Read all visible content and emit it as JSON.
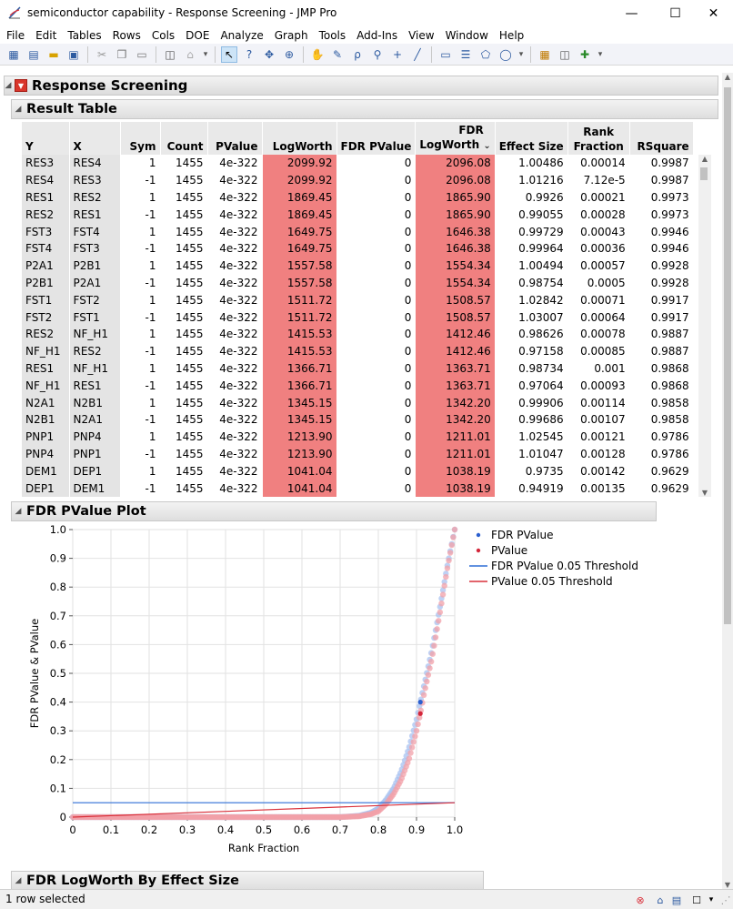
{
  "window": {
    "title": "semiconductor capability - Response Screening - JMP Pro",
    "minimize_glyph": "—",
    "maximize_glyph": "☐",
    "close_glyph": "✕"
  },
  "menu": [
    "File",
    "Edit",
    "Tables",
    "Rows",
    "Cols",
    "DOE",
    "Analyze",
    "Graph",
    "Tools",
    "Add-Ins",
    "View",
    "Window",
    "Help"
  ],
  "toolbar_icons": [
    "new-data-table-icon",
    "new-script-icon",
    "open-icon",
    "save-icon",
    "cut-icon",
    "copy-icon",
    "paste-icon",
    "journal-icon",
    "lock-icon",
    "arrow-icon",
    "help-icon",
    "scroller-icon",
    "crosshair-icon",
    "hand-icon",
    "brush-icon",
    "lasso-icon",
    "magnifier-icon",
    "plus-icon",
    "line-icon",
    "annotate-icon",
    "simple-shape-icon",
    "polygon-icon",
    "ellipse-icon",
    "data-grid-icon",
    "presentation-icon",
    "add-icon"
  ],
  "report": {
    "title": "Response Screening",
    "result_table": {
      "title": "Result Table",
      "columns": [
        {
          "label": "Y",
          "key": "y"
        },
        {
          "label": "X",
          "key": "x"
        },
        {
          "label": "Sym",
          "key": "sym"
        },
        {
          "label": "Count",
          "key": "count"
        },
        {
          "label": "PValue",
          "key": "pvalue"
        },
        {
          "label": "LogWorth",
          "key": "logworth"
        },
        {
          "label": "FDR PValue",
          "key": "fdr_pvalue"
        },
        {
          "label": "FDR LogWorth",
          "key": "fdr_logworth",
          "line1": "FDR",
          "line2": "LogWorth"
        },
        {
          "label": "Effect Size",
          "key": "effect_size"
        },
        {
          "label": "Rank Fraction",
          "key": "rank_fraction",
          "line1": "Rank",
          "line2": "Fraction"
        },
        {
          "label": "RSquare",
          "key": "rsquare"
        }
      ],
      "rows": [
        [
          "RES3",
          "RES4",
          "1",
          "1455",
          "4e-322",
          "2099.92",
          "0",
          "2096.08",
          "1.00486",
          "0.00014",
          "0.9987"
        ],
        [
          "RES4",
          "RES3",
          "-1",
          "1455",
          "4e-322",
          "2099.92",
          "0",
          "2096.08",
          "1.01216",
          "7.12e-5",
          "0.9987"
        ],
        [
          "RES1",
          "RES2",
          "1",
          "1455",
          "4e-322",
          "1869.45",
          "0",
          "1865.90",
          "0.9926",
          "0.00021",
          "0.9973"
        ],
        [
          "RES2",
          "RES1",
          "-1",
          "1455",
          "4e-322",
          "1869.45",
          "0",
          "1865.90",
          "0.99055",
          "0.00028",
          "0.9973"
        ],
        [
          "FST3",
          "FST4",
          "1",
          "1455",
          "4e-322",
          "1649.75",
          "0",
          "1646.38",
          "0.99729",
          "0.00043",
          "0.9946"
        ],
        [
          "FST4",
          "FST3",
          "-1",
          "1455",
          "4e-322",
          "1649.75",
          "0",
          "1646.38",
          "0.99964",
          "0.00036",
          "0.9946"
        ],
        [
          "P2A1",
          "P2B1",
          "1",
          "1455",
          "4e-322",
          "1557.58",
          "0",
          "1554.34",
          "1.00494",
          "0.00057",
          "0.9928"
        ],
        [
          "P2B1",
          "P2A1",
          "-1",
          "1455",
          "4e-322",
          "1557.58",
          "0",
          "1554.34",
          "0.98754",
          "0.0005",
          "0.9928"
        ],
        [
          "FST1",
          "FST2",
          "1",
          "1455",
          "4e-322",
          "1511.72",
          "0",
          "1508.57",
          "1.02842",
          "0.00071",
          "0.9917"
        ],
        [
          "FST2",
          "FST1",
          "-1",
          "1455",
          "4e-322",
          "1511.72",
          "0",
          "1508.57",
          "1.03007",
          "0.00064",
          "0.9917"
        ],
        [
          "RES2",
          "NF_H1",
          "1",
          "1455",
          "4e-322",
          "1415.53",
          "0",
          "1412.46",
          "0.98626",
          "0.00078",
          "0.9887"
        ],
        [
          "NF_H1",
          "RES2",
          "-1",
          "1455",
          "4e-322",
          "1415.53",
          "0",
          "1412.46",
          "0.97158",
          "0.00085",
          "0.9887"
        ],
        [
          "RES1",
          "NF_H1",
          "1",
          "1455",
          "4e-322",
          "1366.71",
          "0",
          "1363.71",
          "0.98734",
          "0.001",
          "0.9868"
        ],
        [
          "NF_H1",
          "RES1",
          "-1",
          "1455",
          "4e-322",
          "1366.71",
          "0",
          "1363.71",
          "0.97064",
          "0.00093",
          "0.9868"
        ],
        [
          "N2A1",
          "N2B1",
          "1",
          "1455",
          "4e-322",
          "1345.15",
          "0",
          "1342.20",
          "0.99906",
          "0.00114",
          "0.9858"
        ],
        [
          "N2B1",
          "N2A1",
          "-1",
          "1455",
          "4e-322",
          "1345.15",
          "0",
          "1342.20",
          "0.99686",
          "0.00107",
          "0.9858"
        ],
        [
          "PNP1",
          "PNP4",
          "1",
          "1455",
          "4e-322",
          "1213.90",
          "0",
          "1211.01",
          "1.02545",
          "0.00121",
          "0.9786"
        ],
        [
          "PNP4",
          "PNP1",
          "-1",
          "1455",
          "4e-322",
          "1213.90",
          "0",
          "1211.01",
          "1.01047",
          "0.00128",
          "0.9786"
        ],
        [
          "DEM1",
          "DEP1",
          "1",
          "1455",
          "4e-322",
          "1041.04",
          "0",
          "1038.19",
          "0.9735",
          "0.00142",
          "0.9629"
        ],
        [
          "DEP1",
          "DEM1",
          "-1",
          "1455",
          "4e-322",
          "1041.04",
          "0",
          "1038.19",
          "0.94919",
          "0.00135",
          "0.9629"
        ]
      ],
      "highlight_color": "#f08080",
      "sort_indicator_glyph": "⌄"
    },
    "fdr_plot": {
      "title": "FDR PValue Plot"
    },
    "next_section": {
      "title": "FDR LogWorth By Effect Size"
    }
  },
  "chart_data": {
    "type": "scatter",
    "title": "",
    "xlabel": "Rank Fraction",
    "ylabel": "FDR PValue & PValue",
    "xlim": [
      0,
      1.0
    ],
    "ylim": [
      0,
      1.0
    ],
    "xticks": [
      "0",
      "0.1",
      "0.2",
      "0.3",
      "0.4",
      "0.5",
      "0.6",
      "0.7",
      "0.8",
      "0.9",
      "1.0"
    ],
    "yticks": [
      "0",
      "0.1",
      "0.2",
      "0.3",
      "0.4",
      "0.5",
      "0.6",
      "0.7",
      "0.8",
      "0.9",
      "1.0"
    ],
    "grid": true,
    "legend_position": "right",
    "series": [
      {
        "name": "FDR PValue",
        "kind": "points",
        "color": "#a8c2f0",
        "x": [
          0.0,
          0.7,
          0.75,
          0.78,
          0.8,
          0.82,
          0.84,
          0.86,
          0.88,
          0.9,
          0.91,
          0.92,
          0.94,
          0.96,
          0.98,
          1.0
        ],
        "y": [
          0.0,
          0.0,
          0.005,
          0.015,
          0.03,
          0.06,
          0.1,
          0.16,
          0.24,
          0.34,
          0.4,
          0.46,
          0.58,
          0.72,
          0.87,
          1.0
        ]
      },
      {
        "name": "PValue",
        "kind": "points",
        "color": "#f2a0a8",
        "x": [
          0.0,
          0.7,
          0.75,
          0.78,
          0.8,
          0.82,
          0.84,
          0.86,
          0.88,
          0.9,
          0.91,
          0.92,
          0.94,
          0.96,
          0.98,
          1.0
        ],
        "y": [
          0.0,
          0.0,
          0.003,
          0.01,
          0.02,
          0.045,
          0.08,
          0.13,
          0.2,
          0.3,
          0.36,
          0.43,
          0.55,
          0.7,
          0.86,
          1.0
        ]
      },
      {
        "name": "FDR PValue 0.05 Threshold",
        "kind": "line",
        "color": "#2f6fd6",
        "x": [
          0,
          1.0
        ],
        "y": [
          0.05,
          0.05
        ]
      },
      {
        "name": "PValue 0.05 Threshold",
        "kind": "line",
        "color": "#d9303a",
        "x": [
          0,
          1.0
        ],
        "y": [
          0.0,
          0.05
        ]
      }
    ],
    "highlighted_points": [
      {
        "series": "FDR PValue",
        "x": 0.91,
        "y": 0.4,
        "color": "#2b5fcf"
      },
      {
        "series": "PValue",
        "x": 0.91,
        "y": 0.36,
        "color": "#d4263a"
      }
    ]
  },
  "status": {
    "text": "1 row selected"
  }
}
